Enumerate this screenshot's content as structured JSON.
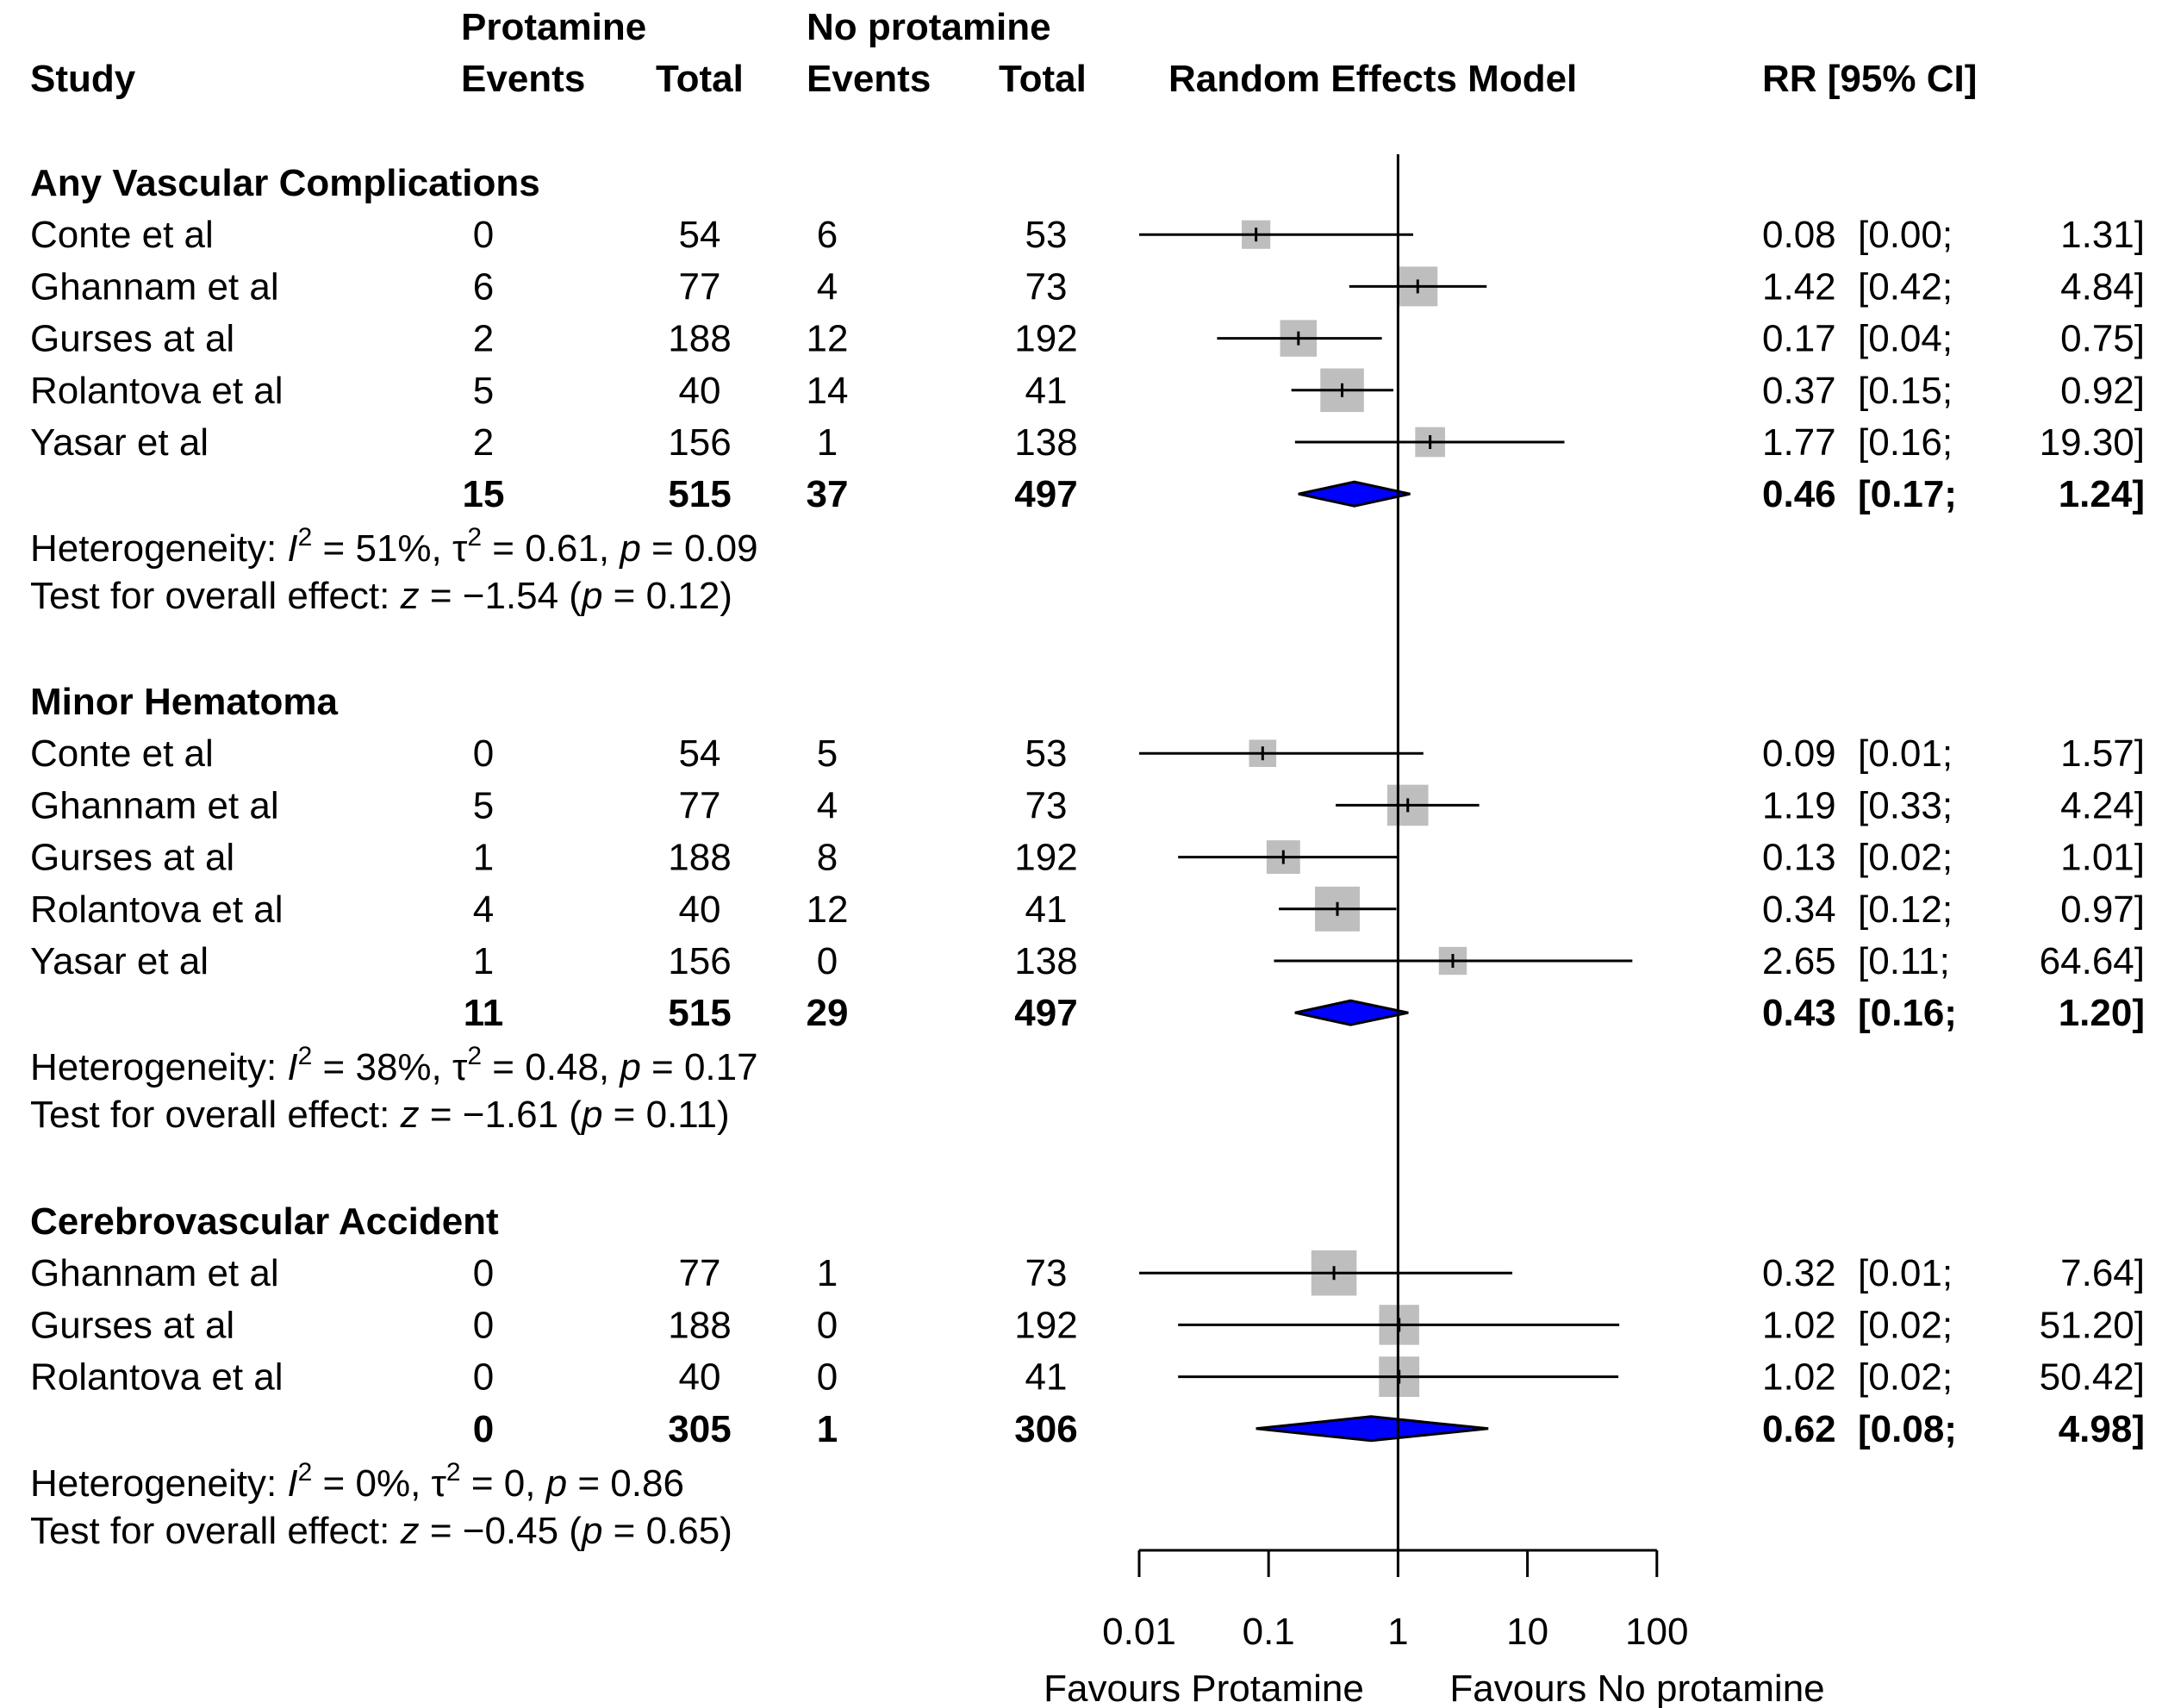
{
  "chart_data": {
    "type": "forest",
    "model_label": "Random Effects Model",
    "measure": "RR",
    "header": {
      "study": "Study",
      "group1": "Protamine",
      "group2": "No protamine",
      "events": "Events",
      "total": "Total",
      "ci": "RR [95% CI]"
    },
    "x_axis": {
      "scale": "log",
      "range": [
        0.01,
        100
      ],
      "ticks": [
        0.01,
        0.1,
        1,
        10,
        100
      ],
      "tick_labels": [
        "0.01",
        "0.1",
        "1",
        "10",
        "100"
      ],
      "reference_line": 1,
      "label_left": "Favours Protamine",
      "label_right": "Favours No protamine"
    },
    "colors": {
      "square": "#bebebe",
      "diamond": "#0000ff",
      "line": "#000000"
    },
    "subgroups": [
      {
        "title": "Any Vascular Complications",
        "studies": [
          {
            "name": "Conte et al",
            "e1": "0",
            "n1": "54",
            "e2": "6",
            "n2": "53",
            "rr": 0.08,
            "lo": 0.0,
            "hi": 1.31,
            "rr_text": "0.08",
            "lo_text": "[0.00;",
            "hi_text": "1.31]",
            "weight": 0.1
          },
          {
            "name": "Ghannam et al",
            "e1": "6",
            "n1": "77",
            "e2": "4",
            "n2": "73",
            "rr": 1.42,
            "lo": 0.42,
            "hi": 4.84,
            "rr_text": "1.42",
            "lo_text": "[0.42;",
            "hi_text": "4.84]",
            "weight": 0.34
          },
          {
            "name": "Gurses at al",
            "e1": "2",
            "n1": "188",
            "e2": "12",
            "n2": "192",
            "rr": 0.17,
            "lo": 0.04,
            "hi": 0.75,
            "rr_text": "0.17",
            "lo_text": "[0.04;",
            "hi_text": "0.75]",
            "weight": 0.26
          },
          {
            "name": "Rolantova et al",
            "e1": "5",
            "n1": "40",
            "e2": "14",
            "n2": "41",
            "rr": 0.37,
            "lo": 0.15,
            "hi": 0.92,
            "rr_text": "0.37",
            "lo_text": "[0.15;",
            "hi_text": "0.92]",
            "weight": 0.46
          },
          {
            "name": "Yasar et al",
            "e1": "2",
            "n1": "156",
            "e2": "1",
            "n2": "138",
            "rr": 1.77,
            "lo": 0.16,
            "hi": 19.3,
            "rr_text": "1.77",
            "lo_text": "[0.16;",
            "hi_text": "19.30]",
            "weight": 0.12
          }
        ],
        "summary": {
          "e1": "15",
          "n1": "515",
          "e2": "37",
          "n2": "497",
          "rr": 0.46,
          "lo": 0.17,
          "hi": 1.24,
          "rr_text": "0.46",
          "lo_text": "[0.17;",
          "hi_text": "1.24]"
        },
        "heterogeneity": {
          "prefix": "Heterogeneity: ",
          "i2_sym": "I",
          "i2_val": " = 51%, ",
          "tau_sym": "τ",
          "tau_val": " = 0.61, ",
          "p_sym": "p",
          "p_val": " = 0.09"
        },
        "overall": {
          "prefix": "Test for overall effect: ",
          "z_sym": "z",
          "z_val": " = −1.54 (",
          "p_sym": "p",
          "p_val": " = 0.12)"
        }
      },
      {
        "title": "Minor Hematoma",
        "studies": [
          {
            "name": "Conte et al",
            "e1": "0",
            "n1": "54",
            "e2": "5",
            "n2": "53",
            "rr": 0.09,
            "lo": 0.01,
            "hi": 1.57,
            "rr_text": "0.09",
            "lo_text": "[0.01;",
            "hi_text": "1.57]",
            "weight": 0.08
          },
          {
            "name": "Ghannam et al",
            "e1": "5",
            "n1": "77",
            "e2": "4",
            "n2": "73",
            "rr": 1.19,
            "lo": 0.33,
            "hi": 4.24,
            "rr_text": "1.19",
            "lo_text": "[0.33;",
            "hi_text": "4.24]",
            "weight": 0.38
          },
          {
            "name": "Gurses at al",
            "e1": "1",
            "n1": "188",
            "e2": "8",
            "n2": "192",
            "rr": 0.13,
            "lo": 0.02,
            "hi": 1.01,
            "rr_text": "0.13",
            "lo_text": "[0.02;",
            "hi_text": "1.01]",
            "weight": 0.19
          },
          {
            "name": "Rolantova et al",
            "e1": "4",
            "n1": "40",
            "e2": "12",
            "n2": "41",
            "rr": 0.34,
            "lo": 0.12,
            "hi": 0.97,
            "rr_text": "0.34",
            "lo_text": "[0.12;",
            "hi_text": "0.97]",
            "weight": 0.5
          },
          {
            "name": "Yasar et al",
            "e1": "1",
            "n1": "156",
            "e2": "0",
            "n2": "138",
            "rr": 2.65,
            "lo": 0.11,
            "hi": 64.64,
            "rr_text": "2.65",
            "lo_text": "[0.11;",
            "hi_text": "64.64]",
            "weight": 0.09
          }
        ],
        "summary": {
          "e1": "11",
          "n1": "515",
          "e2": "29",
          "n2": "497",
          "rr": 0.43,
          "lo": 0.16,
          "hi": 1.2,
          "rr_text": "0.43",
          "lo_text": "[0.16;",
          "hi_text": "1.20]"
        },
        "heterogeneity": {
          "prefix": "Heterogeneity: ",
          "i2_sym": "I",
          "i2_val": " = 38%, ",
          "tau_sym": "τ",
          "tau_val": " = 0.48, ",
          "p_sym": "p",
          "p_val": " = 0.17"
        },
        "overall": {
          "prefix": "Test for overall effect: ",
          "z_sym": "z",
          "z_val": " = −1.61 (",
          "p_sym": "p",
          "p_val": " = 0.11)"
        }
      },
      {
        "title": "Cerebrovascular Accident",
        "studies": [
          {
            "name": "Ghannam et al",
            "e1": "0",
            "n1": "77",
            "e2": "1",
            "n2": "73",
            "rr": 0.32,
            "lo": 0.01,
            "hi": 7.64,
            "rr_text": "0.32",
            "lo_text": "[0.01;",
            "hi_text": "7.64]",
            "weight": 0.52
          },
          {
            "name": "Gurses at al",
            "e1": "0",
            "n1": "188",
            "e2": "0",
            "n2": "192",
            "rr": 1.02,
            "lo": 0.02,
            "hi": 51.2,
            "rr_text": "1.02",
            "lo_text": "[0.02;",
            "hi_text": "51.20]",
            "weight": 0.35
          },
          {
            "name": "Rolantova et al",
            "e1": "0",
            "n1": "40",
            "e2": "0",
            "n2": "41",
            "rr": 1.02,
            "lo": 0.02,
            "hi": 50.42,
            "rr_text": "1.02",
            "lo_text": "[0.02;",
            "hi_text": "50.42]",
            "weight": 0.36
          }
        ],
        "summary": {
          "e1": "0",
          "n1": "305",
          "e2": "1",
          "n2": "306",
          "rr": 0.62,
          "lo": 0.08,
          "hi": 4.98,
          "rr_text": "0.62",
          "lo_text": "[0.08;",
          "hi_text": "4.98]"
        },
        "heterogeneity": {
          "prefix": "Heterogeneity: ",
          "i2_sym": "I",
          "i2_val": " = 0%, ",
          "tau_sym": "τ",
          "tau_val": " = 0, ",
          "p_sym": "p",
          "p_val": " = 0.86"
        },
        "overall": {
          "prefix": "Test for overall effect: ",
          "z_sym": "z",
          "z_val": " = −0.45 (",
          "p_sym": "p",
          "p_val": " = 0.65)"
        }
      }
    ]
  }
}
